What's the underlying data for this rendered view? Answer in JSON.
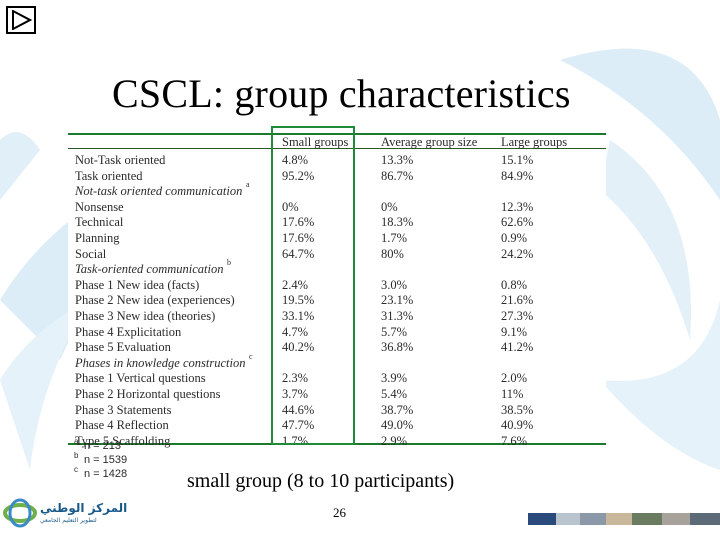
{
  "slide": {
    "title": "CSCL: group characteristics",
    "caption": "small group (8 to 10 participants)",
    "page_number": "26"
  },
  "colors": {
    "accent_green": "#1e8a3a",
    "watermark_blue": "#cfe6f4",
    "text": "#2b2b2b"
  },
  "nav": {
    "play_icon": "play-icon"
  },
  "table": {
    "headers": [
      "",
      "Small groups",
      "Average group size",
      "Large groups"
    ],
    "rows": [
      {
        "label": "Not-Task oriented",
        "values": [
          "4.8%",
          "13.3%",
          "15.1%"
        ]
      },
      {
        "label": "Task oriented",
        "values": [
          "95.2%",
          "86.7%",
          "84.9%"
        ]
      },
      {
        "label": "Not-task oriented communication",
        "section": true,
        "note": "a"
      },
      {
        "label": "Nonsense",
        "values": [
          "0%",
          "0%",
          "12.3%"
        ]
      },
      {
        "label": "Technical",
        "values": [
          "17.6%",
          "18.3%",
          "62.6%"
        ]
      },
      {
        "label": "Planning",
        "values": [
          "17.6%",
          "1.7%",
          "0.9%"
        ]
      },
      {
        "label": "Social",
        "values": [
          "64.7%",
          "80%",
          "24.2%"
        ]
      },
      {
        "label": "Task-oriented communication",
        "section": true,
        "note": "b"
      },
      {
        "label": "Phase 1 New idea (facts)",
        "values": [
          "2.4%",
          "3.0%",
          "0.8%"
        ]
      },
      {
        "label": "Phase 2 New idea (experiences)",
        "values": [
          "19.5%",
          "23.1%",
          "21.6%"
        ]
      },
      {
        "label": "Phase 3 New idea  (theories)",
        "values": [
          "33.1%",
          "31.3%",
          "27.3%"
        ]
      },
      {
        "label": "Phase 4 Explicitation",
        "values": [
          "4.7%",
          "5.7%",
          "9.1%"
        ]
      },
      {
        "label": "Phase 5 Evaluation",
        "values": [
          "40.2%",
          "36.8%",
          "41.2%"
        ]
      },
      {
        "label": "Phases in knowledge construction",
        "section": true,
        "note": "c"
      },
      {
        "label": "Phase 1 Vertical questions",
        "values": [
          "2.3%",
          "3.9%",
          "2.0%"
        ]
      },
      {
        "label": "Phase 2 Horizontal questions",
        "values": [
          "3.7%",
          "5.4%",
          "11%"
        ]
      },
      {
        "label": "Phase 3 Statements",
        "values": [
          "44.6%",
          "38.7%",
          "38.5%"
        ]
      },
      {
        "label": "Phase 4 Reflection",
        "values": [
          "47.7%",
          "49.0%",
          "40.9%"
        ]
      },
      {
        "label": "Type 5 Scaffolding",
        "values": [
          "1.7%",
          "2.9%",
          "7.6%"
        ]
      }
    ],
    "footnotes": [
      {
        "mark": "a",
        "text": "n = 213"
      },
      {
        "mark": "b",
        "text": "n = 1539"
      },
      {
        "mark": "c",
        "text": "n = 1428"
      }
    ]
  },
  "logo_left": {
    "text": "المركز الوطني",
    "subtext": "لتطوير التعليم الجامعي"
  }
}
